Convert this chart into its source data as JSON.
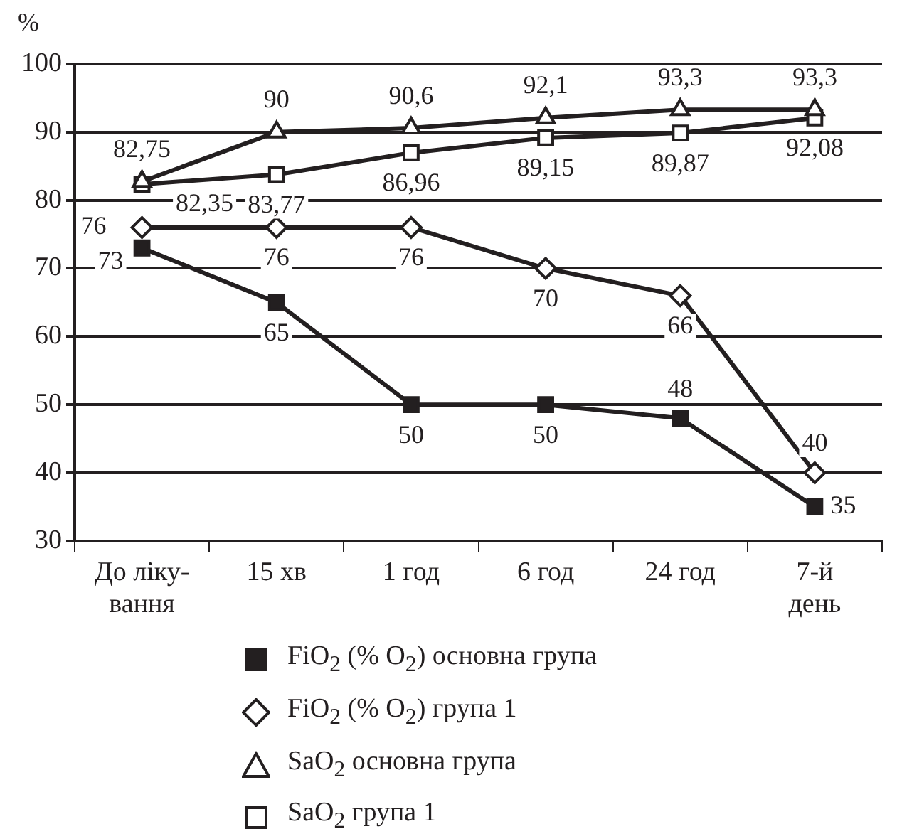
{
  "chart_data": {
    "type": "line",
    "ylabel": "%",
    "categories": [
      "До ліку-\nвання",
      "15 хв",
      "1 год",
      "6 год",
      "24 год",
      "7-й\nдень"
    ],
    "ylim": [
      30,
      100
    ],
    "yticks": [
      30,
      40,
      50,
      60,
      70,
      80,
      90,
      100
    ],
    "grid": "y",
    "legend": "bottom",
    "line_style": "solid",
    "series": [
      {
        "name": "FiO$_{2}$ (% O$_{2}$) основна група",
        "color": "#231f20",
        "marker": "square",
        "values": [
          73,
          65,
          50,
          50,
          48,
          35
        ],
        "value_labels": [
          "73",
          "65",
          "50",
          "50",
          "48",
          "35"
        ]
      },
      {
        "name": "FiO$_{2}$ (% O$_{2}$) група 1",
        "color": "#231f20",
        "marker": "diamond",
        "values": [
          76,
          76,
          76,
          70,
          66,
          40
        ],
        "value_labels": [
          "76",
          "76",
          "76",
          "70",
          "66",
          "40"
        ]
      },
      {
        "name": "SaO$_{2}$ основна група",
        "color": "#231f20",
        "marker": "triangle",
        "values": [
          82.75,
          90,
          90.6,
          92.1,
          93.3,
          93.3
        ],
        "value_labels": [
          "82,75",
          "90",
          "90,6",
          "92,1",
          "93,3",
          "93,3"
        ]
      },
      {
        "name": "SaO$_{2}$ група 1",
        "color": "#231f20",
        "marker": "square",
        "values": [
          82.35,
          83.77,
          86.96,
          89.15,
          89.87,
          92.08
        ],
        "value_labels": [
          "82,35",
          "83,77",
          "86,96",
          "89,15",
          "89,87",
          "92,08"
        ]
      }
    ]
  }
}
